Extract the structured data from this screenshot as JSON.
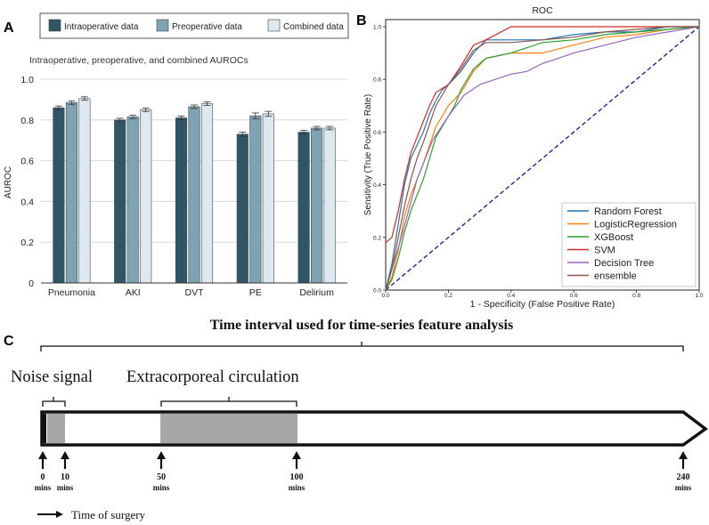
{
  "panel_labels": [
    "A",
    "B",
    "C"
  ],
  "chart_data": [
    {
      "type": "bar",
      "title": "Intraoperative, preoperative, and combined AUROCs",
      "xlabel": "",
      "ylabel": "AUROC",
      "ylim": [
        0,
        1.0
      ],
      "yticks": [
        "0",
        "0.2",
        "0.4",
        "0.6",
        "0.8",
        "1.0"
      ],
      "categories": [
        "Pneumonia",
        "AKI",
        "DVT",
        "PE",
        "Delirium"
      ],
      "legend_position": "top",
      "series": [
        {
          "name": "Intraoperative data",
          "values": [
            0.86,
            0.8,
            0.81,
            0.73,
            0.74
          ],
          "color": "#2f5566"
        },
        {
          "name": "Preoperative data",
          "values": [
            0.885,
            0.815,
            0.865,
            0.82,
            0.76
          ],
          "color": "#7fa3b2"
        },
        {
          "name": "Combined data",
          "values": [
            0.905,
            0.85,
            0.88,
            0.83,
            0.76
          ],
          "color": "#dde9ef"
        }
      ],
      "errors": [
        [
          0.004,
          0.004,
          0.004,
          0.006,
          0.004
        ],
        [
          0.004,
          0.004,
          0.004,
          0.01,
          0.004
        ],
        [
          0.004,
          0.004,
          0.004,
          0.008,
          0.004
        ]
      ],
      "grid": true
    },
    {
      "type": "line",
      "title": "ROC",
      "xlabel": "1 - Specificity (False Positive Rate)",
      "ylabel": "Sensitivity (True Positive Rate)",
      "xlim": [
        0,
        1.0
      ],
      "ylim": [
        0,
        1.0
      ],
      "xticks": [
        "0.0",
        "0.2",
        "0.4",
        "0.6",
        "0.8",
        "1.0"
      ],
      "yticks": [
        "0.0",
        "0.2",
        "0.4",
        "0.6",
        "0.8",
        "1.0"
      ],
      "legend_position": "bottom-right",
      "diagonal": true,
      "series": [
        {
          "name": "Random Forest",
          "color": "#1f77b4",
          "points": [
            [
              0,
              0
            ],
            [
              0.02,
              0.1
            ],
            [
              0.04,
              0.25
            ],
            [
              0.06,
              0.4
            ],
            [
              0.08,
              0.5
            ],
            [
              0.1,
              0.55
            ],
            [
              0.12,
              0.6
            ],
            [
              0.14,
              0.67
            ],
            [
              0.16,
              0.72
            ],
            [
              0.18,
              0.76
            ],
            [
              0.2,
              0.78
            ],
            [
              0.24,
              0.83
            ],
            [
              0.28,
              0.9
            ],
            [
              0.32,
              0.95
            ],
            [
              0.4,
              0.95
            ],
            [
              0.5,
              0.95
            ],
            [
              0.6,
              0.97
            ],
            [
              0.7,
              0.98
            ],
            [
              0.8,
              0.98
            ],
            [
              0.9,
              1.0
            ],
            [
              1.0,
              1.0
            ]
          ]
        },
        {
          "name": "LogisticRegression",
          "color": "#ff7f0e",
          "points": [
            [
              0,
              0
            ],
            [
              0.02,
              0.05
            ],
            [
              0.04,
              0.15
            ],
            [
              0.06,
              0.28
            ],
            [
              0.08,
              0.36
            ],
            [
              0.1,
              0.42
            ],
            [
              0.12,
              0.48
            ],
            [
              0.14,
              0.55
            ],
            [
              0.16,
              0.62
            ],
            [
              0.2,
              0.7
            ],
            [
              0.24,
              0.75
            ],
            [
              0.28,
              0.83
            ],
            [
              0.32,
              0.88
            ],
            [
              0.4,
              0.9
            ],
            [
              0.5,
              0.9
            ],
            [
              0.6,
              0.93
            ],
            [
              0.7,
              0.96
            ],
            [
              0.8,
              0.97
            ],
            [
              0.9,
              0.99
            ],
            [
              1.0,
              1.0
            ]
          ]
        },
        {
          "name": "XGBoost",
          "color": "#2ca02c",
          "points": [
            [
              0,
              0
            ],
            [
              0.02,
              0.04
            ],
            [
              0.04,
              0.12
            ],
            [
              0.06,
              0.22
            ],
            [
              0.08,
              0.3
            ],
            [
              0.1,
              0.36
            ],
            [
              0.12,
              0.42
            ],
            [
              0.14,
              0.5
            ],
            [
              0.16,
              0.58
            ],
            [
              0.18,
              0.62
            ],
            [
              0.2,
              0.66
            ],
            [
              0.22,
              0.7
            ],
            [
              0.24,
              0.76
            ],
            [
              0.28,
              0.84
            ],
            [
              0.32,
              0.88
            ],
            [
              0.4,
              0.9
            ],
            [
              0.5,
              0.94
            ],
            [
              0.6,
              0.95
            ],
            [
              0.7,
              0.97
            ],
            [
              0.8,
              0.98
            ],
            [
              0.9,
              0.99
            ],
            [
              1.0,
              1.0
            ]
          ]
        },
        {
          "name": "SVM",
          "color": "#d62728",
          "points": [
            [
              0,
              0.18
            ],
            [
              0.02,
              0.2
            ],
            [
              0.04,
              0.3
            ],
            [
              0.06,
              0.42
            ],
            [
              0.08,
              0.52
            ],
            [
              0.1,
              0.58
            ],
            [
              0.12,
              0.64
            ],
            [
              0.14,
              0.7
            ],
            [
              0.16,
              0.75
            ],
            [
              0.2,
              0.78
            ],
            [
              0.24,
              0.85
            ],
            [
              0.28,
              0.93
            ],
            [
              0.32,
              0.95
            ],
            [
              0.4,
              1.0
            ],
            [
              0.6,
              1.0
            ],
            [
              0.8,
              1.0
            ],
            [
              1.0,
              1.0
            ]
          ]
        },
        {
          "name": "Decision Tree",
          "color": "#9467bd",
          "points": [
            [
              0,
              0
            ],
            [
              0.05,
              0.2
            ],
            [
              0.1,
              0.42
            ],
            [
              0.15,
              0.57
            ],
            [
              0.2,
              0.66
            ],
            [
              0.25,
              0.74
            ],
            [
              0.3,
              0.78
            ],
            [
              0.35,
              0.8
            ],
            [
              0.4,
              0.82
            ],
            [
              0.45,
              0.83
            ],
            [
              0.5,
              0.86
            ],
            [
              0.6,
              0.9
            ],
            [
              0.7,
              0.93
            ],
            [
              0.8,
              0.96
            ],
            [
              0.9,
              0.98
            ],
            [
              1.0,
              1.0
            ]
          ]
        },
        {
          "name": "ensemble",
          "color": "#8c564b",
          "points": [
            [
              0,
              0
            ],
            [
              0.02,
              0.08
            ],
            [
              0.04,
              0.2
            ],
            [
              0.06,
              0.32
            ],
            [
              0.08,
              0.42
            ],
            [
              0.1,
              0.5
            ],
            [
              0.12,
              0.56
            ],
            [
              0.14,
              0.63
            ],
            [
              0.16,
              0.7
            ],
            [
              0.18,
              0.74
            ],
            [
              0.2,
              0.78
            ],
            [
              0.24,
              0.84
            ],
            [
              0.28,
              0.91
            ],
            [
              0.32,
              0.94
            ],
            [
              0.4,
              0.94
            ],
            [
              0.5,
              0.95
            ],
            [
              0.6,
              0.96
            ],
            [
              0.7,
              0.98
            ],
            [
              0.8,
              0.99
            ],
            [
              0.9,
              1.0
            ],
            [
              1.0,
              1.0
            ]
          ]
        }
      ]
    }
  ],
  "timeline": {
    "title": "Time interval used for time-series feature analysis",
    "noise_label": "Noise signal",
    "ecc_label": "Extracorporeal circulation",
    "legend_label": "Time of surgery",
    "markers": [
      {
        "value": "0",
        "unit": "mins"
      },
      {
        "value": "10",
        "unit": "mins"
      },
      {
        "value": "50",
        "unit": "mins"
      },
      {
        "value": "100",
        "unit": "mins"
      },
      {
        "value": "240",
        "unit": "mins"
      }
    ]
  }
}
